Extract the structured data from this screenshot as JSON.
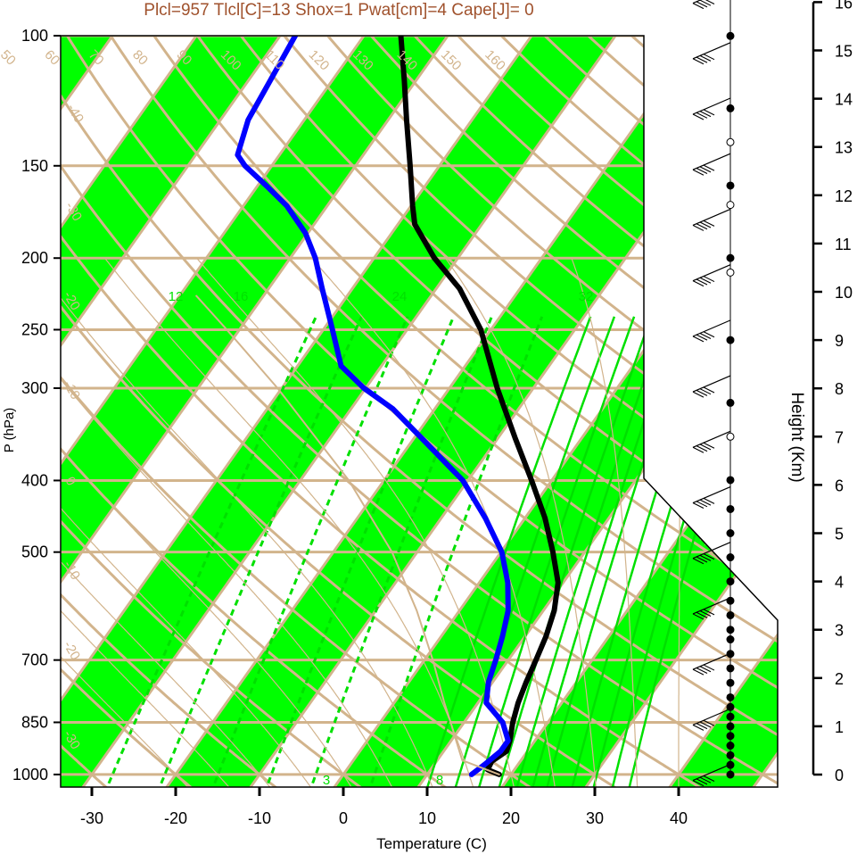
{
  "chart_data": {
    "type": "skew-t",
    "title": "Plcl=957 Tlcl[C]=13 Shox=1 Pwat[cm]=4 Cape[J]= 0",
    "xlabel": "Temperature (C)",
    "ylabel": "P (hPa)",
    "y2label": "Height (Km)",
    "pressure_ticks": [
      100,
      150,
      200,
      250,
      300,
      400,
      500,
      700,
      850,
      1000
    ],
    "temperature_ticks": [
      -30,
      -20,
      -10,
      0,
      10,
      20,
      30,
      40
    ],
    "height_ticks": [
      0,
      1,
      2,
      3,
      4,
      5,
      6,
      7,
      8,
      9,
      10,
      11,
      12,
      13,
      14,
      15,
      16
    ],
    "xlim": [
      -33.5,
      51.5
    ],
    "ylim": [
      1050,
      100
    ],
    "isotherm_step": 10,
    "dry_adiabat_labels": [
      "50",
      "60",
      "70",
      "80",
      "90",
      "100",
      "110",
      "120",
      "130",
      "140",
      "150",
      "160"
    ],
    "moist_adiabat_labels": [
      "-40",
      "-30",
      "-20",
      "-10",
      "0",
      "10",
      "20",
      "30"
    ],
    "mixing_ratio_labels": [
      "3",
      "8",
      "12",
      "16",
      "24",
      "32"
    ],
    "colors": {
      "band": "#00ff00",
      "grid": "#d2b48c",
      "mixing": "#00e000",
      "temperature": "#000000",
      "dewpoint": "#0000ff",
      "title": "#a0522d"
    },
    "series": [
      {
        "name": "temperature",
        "color": "#000000",
        "points": [
          [
            1000,
            18.6
          ],
          [
            985,
            16.8
          ],
          [
            960,
            16.6
          ],
          [
            930,
            17.5
          ],
          [
            900,
            17.0
          ],
          [
            850,
            15.8
          ],
          [
            800,
            14.8
          ],
          [
            750,
            14.0
          ],
          [
            700,
            13.3
          ],
          [
            650,
            12.5
          ],
          [
            600,
            11.3
          ],
          [
            550,
            9.4
          ],
          [
            500,
            6.2
          ],
          [
            450,
            2.4
          ],
          [
            400,
            -2.4
          ],
          [
            350,
            -8.0
          ],
          [
            300,
            -14.3
          ],
          [
            250,
            -21.2
          ],
          [
            220,
            -27.2
          ],
          [
            200,
            -32.8
          ],
          [
            180,
            -38.0
          ],
          [
            170,
            -39.8
          ],
          [
            150,
            -43.5
          ],
          [
            130,
            -47.8
          ],
          [
            115,
            -51.4
          ],
          [
            100,
            -55.6
          ]
        ]
      },
      {
        "name": "dewpoint",
        "color": "#0000ff",
        "points": [
          [
            1000,
            15.3
          ],
          [
            970,
            16.0
          ],
          [
            930,
            16.8
          ],
          [
            900,
            16.8
          ],
          [
            850,
            14.6
          ],
          [
            800,
            11.0
          ],
          [
            750,
            9.5
          ],
          [
            700,
            8.5
          ],
          [
            650,
            7.3
          ],
          [
            600,
            5.8
          ],
          [
            550,
            3.4
          ],
          [
            500,
            0.1
          ],
          [
            450,
            -4.7
          ],
          [
            400,
            -10.6
          ],
          [
            350,
            -19.2
          ],
          [
            320,
            -25.0
          ],
          [
            300,
            -30.2
          ],
          [
            280,
            -34.8
          ],
          [
            250,
            -38.9
          ],
          [
            220,
            -43.6
          ],
          [
            200,
            -47.0
          ],
          [
            185,
            -50.3
          ],
          [
            170,
            -54.8
          ],
          [
            160,
            -58.8
          ],
          [
            150,
            -63.2
          ],
          [
            145,
            -65.0
          ],
          [
            130,
            -66.7
          ],
          [
            115,
            -67.4
          ],
          [
            100,
            -68.2
          ]
        ]
      },
      {
        "name": "parcel",
        "color": "#d2b48c",
        "points": [
          [
            1000,
            18.6
          ],
          [
            957,
            13.0
          ],
          [
            900,
            10.6
          ],
          [
            850,
            8.4
          ],
          [
            800,
            6.0
          ],
          [
            700,
            1.0
          ],
          [
            600,
            -5.1
          ],
          [
            500,
            -13.0
          ],
          [
            400,
            -24.2
          ],
          [
            300,
            -40.5
          ],
          [
            250,
            -51.5
          ],
          [
            225,
            -58.0
          ]
        ]
      }
    ],
    "wind_levels_km": [
      0.0,
      0.2,
      0.4,
      0.6,
      0.8,
      1.0,
      1.2,
      1.4,
      1.6,
      1.9,
      2.2,
      2.5,
      2.8,
      3.0,
      3.3,
      3.6,
      4.0,
      4.5,
      5.0,
      5.5,
      6.1,
      7.0,
      7.7,
      9.0,
      10.4,
      10.7,
      11.8,
      12.2,
      13.1,
      13.8,
      15.3,
      16.3
    ],
    "wind_open_markers_km": [
      7.0,
      10.4,
      11.8,
      13.1,
      16.3
    ]
  }
}
